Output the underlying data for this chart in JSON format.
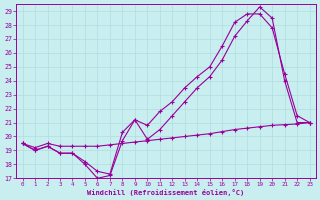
{
  "xlabel": "Windchill (Refroidissement éolien,°C)",
  "background_color": "#c8eef0",
  "line_color": "#990099",
  "xlim": [
    -0.5,
    23.5
  ],
  "ylim": [
    17,
    29.5
  ],
  "xticks": [
    0,
    1,
    2,
    3,
    4,
    5,
    6,
    7,
    8,
    9,
    10,
    11,
    12,
    13,
    14,
    15,
    16,
    17,
    18,
    19,
    20,
    21,
    22,
    23
  ],
  "yticks": [
    17,
    18,
    19,
    20,
    21,
    22,
    23,
    24,
    25,
    26,
    27,
    28,
    29
  ],
  "series1_x": [
    0,
    1,
    2,
    3,
    4,
    5,
    6,
    7,
    8,
    9,
    10,
    11,
    12,
    13,
    14,
    15,
    16,
    17,
    18,
    19,
    20,
    21,
    22,
    23
  ],
  "series1_y": [
    19.5,
    19.0,
    19.3,
    18.8,
    18.8,
    18.0,
    17.0,
    17.2,
    19.7,
    21.2,
    19.8,
    20.5,
    21.5,
    22.5,
    23.5,
    24.3,
    25.5,
    27.2,
    28.3,
    29.3,
    28.5,
    24.0,
    21.0,
    21.0
  ],
  "series2_x": [
    0,
    1,
    2,
    3,
    4,
    5,
    6,
    7,
    8,
    9,
    10,
    11,
    12,
    13,
    14,
    15,
    16,
    17,
    18,
    19,
    20,
    21,
    22,
    23
  ],
  "series2_y": [
    19.5,
    19.0,
    19.3,
    18.8,
    18.8,
    18.2,
    17.5,
    17.3,
    20.3,
    21.2,
    20.8,
    21.8,
    22.5,
    23.5,
    24.3,
    25.0,
    26.5,
    28.2,
    28.8,
    28.8,
    27.8,
    24.5,
    21.5,
    21.0
  ],
  "series3_x": [
    0,
    1,
    2,
    3,
    4,
    5,
    6,
    7,
    8,
    9,
    10,
    11,
    12,
    13,
    14,
    15,
    16,
    17,
    18,
    19,
    20,
    21,
    22,
    23
  ],
  "series3_y": [
    19.5,
    19.2,
    19.5,
    19.3,
    19.3,
    19.3,
    19.3,
    19.4,
    19.5,
    19.6,
    19.7,
    19.8,
    19.9,
    20.0,
    20.1,
    20.2,
    20.35,
    20.5,
    20.6,
    20.7,
    20.8,
    20.85,
    20.9,
    21.0
  ]
}
